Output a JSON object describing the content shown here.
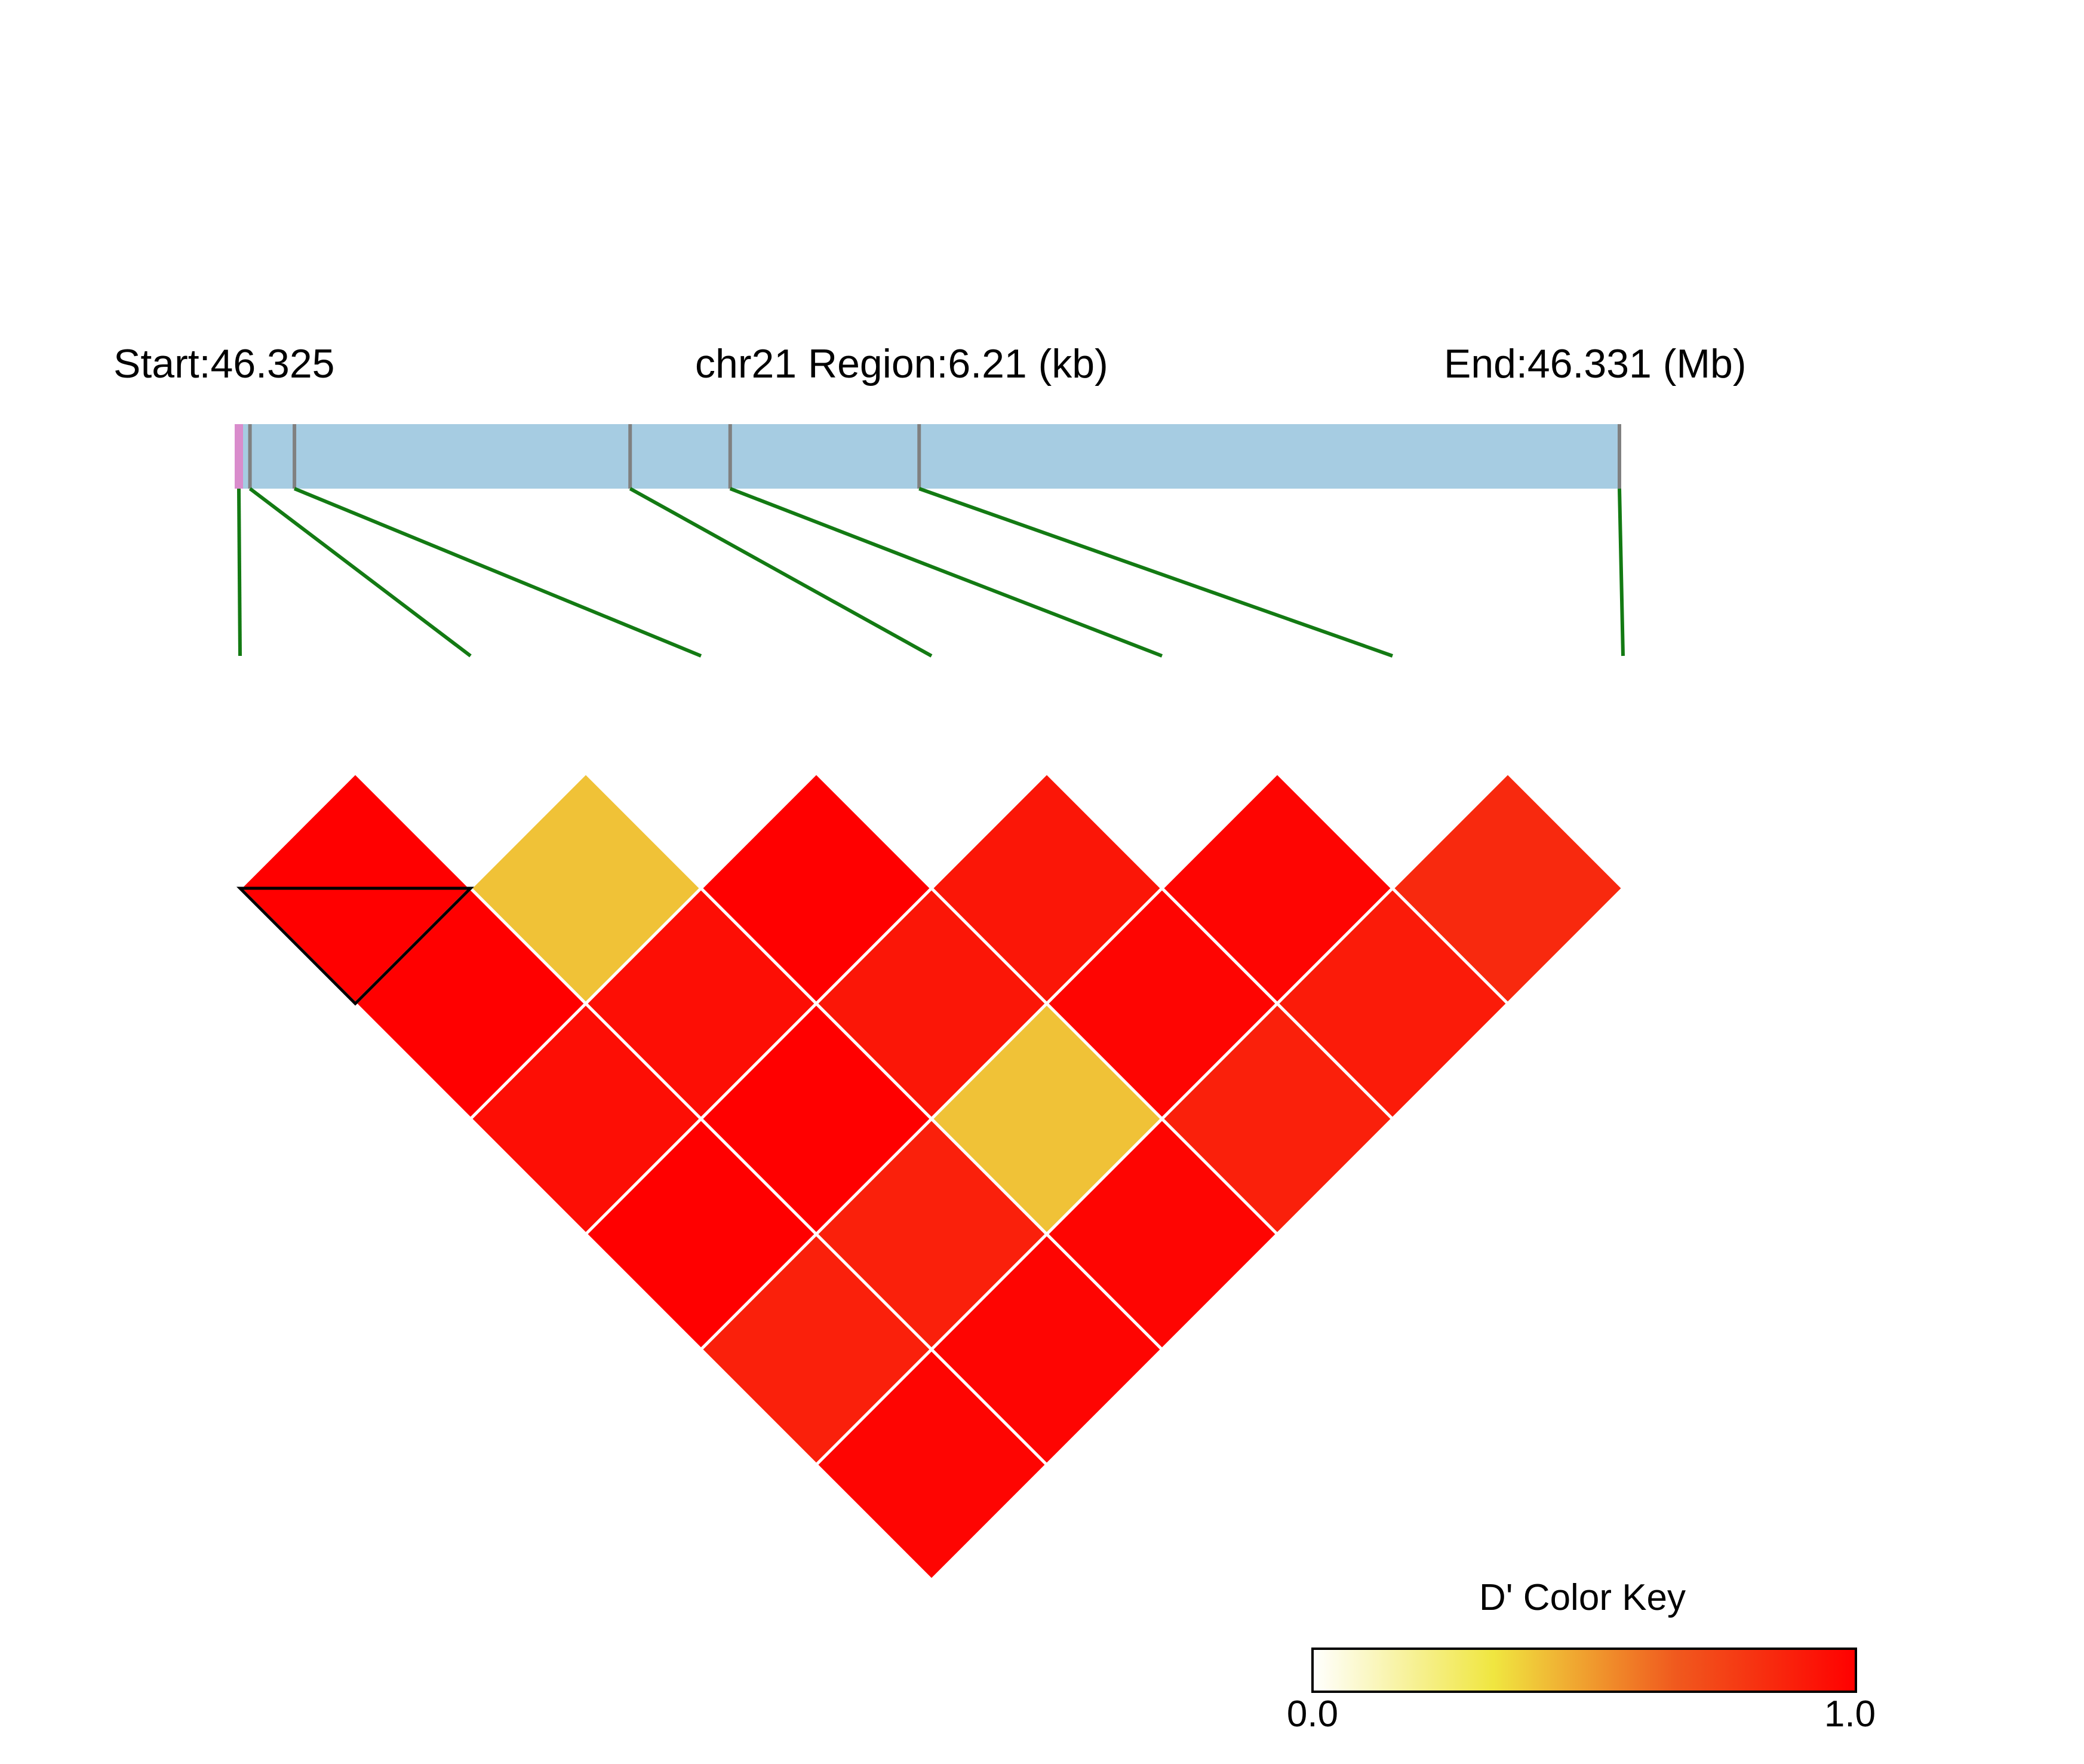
{
  "header": {
    "start_label": "Start:46.325",
    "region_label": "chr21 Region:6.21 (kb)",
    "end_label": "End:46.331 (Mb)"
  },
  "colors": {
    "region_bar": "#a6cce2",
    "snp_tick": "#808080",
    "first_tick": "#d98ccc",
    "connector": "#137a13",
    "cell_border": "#ffffff",
    "block_outline": "#000000"
  },
  "chart_data": {
    "type": "heatmap",
    "metric": "D'",
    "snp_count": 7,
    "region_start_mb": 46.325,
    "region_end_mb": 46.331,
    "region_length_kb": 6.21,
    "snp_positions_kb": [
      0.0,
      0.25,
      1.76,
      2.21,
      3.06,
      6.21
    ],
    "snp_positions_kb_note": "",
    "snp_marker_positions_kb": [
      0.0,
      0.05,
      0.25,
      1.76,
      2.21,
      3.06,
      6.21
    ],
    "d_prime": [
      [
        null,
        1.0,
        1.0,
        0.95,
        1.0,
        0.88,
        0.98
      ],
      [
        1.0,
        null,
        0.42,
        0.95,
        1.0,
        0.88,
        0.98
      ],
      [
        1.0,
        0.42,
        null,
        1.0,
        0.92,
        0.42,
        0.98
      ],
      [
        0.95,
        0.95,
        1.0,
        null,
        0.92,
        0.98,
        0.88
      ],
      [
        1.0,
        1.0,
        0.92,
        0.92,
        null,
        0.98,
        0.9
      ],
      [
        0.88,
        0.88,
        0.42,
        0.98,
        0.98,
        null,
        0.85
      ],
      [
        0.98,
        0.98,
        0.98,
        0.88,
        0.9,
        0.85,
        null
      ]
    ],
    "haplotype_block": [
      0,
      1
    ]
  },
  "color_key": {
    "title": "D' Color Key",
    "min_label": "0.0",
    "max_label": "1.0",
    "min": 0.0,
    "max": 1.0,
    "stops": [
      "#ffffff",
      "#f0e640",
      "#f05a1e",
      "#ff0000"
    ]
  }
}
